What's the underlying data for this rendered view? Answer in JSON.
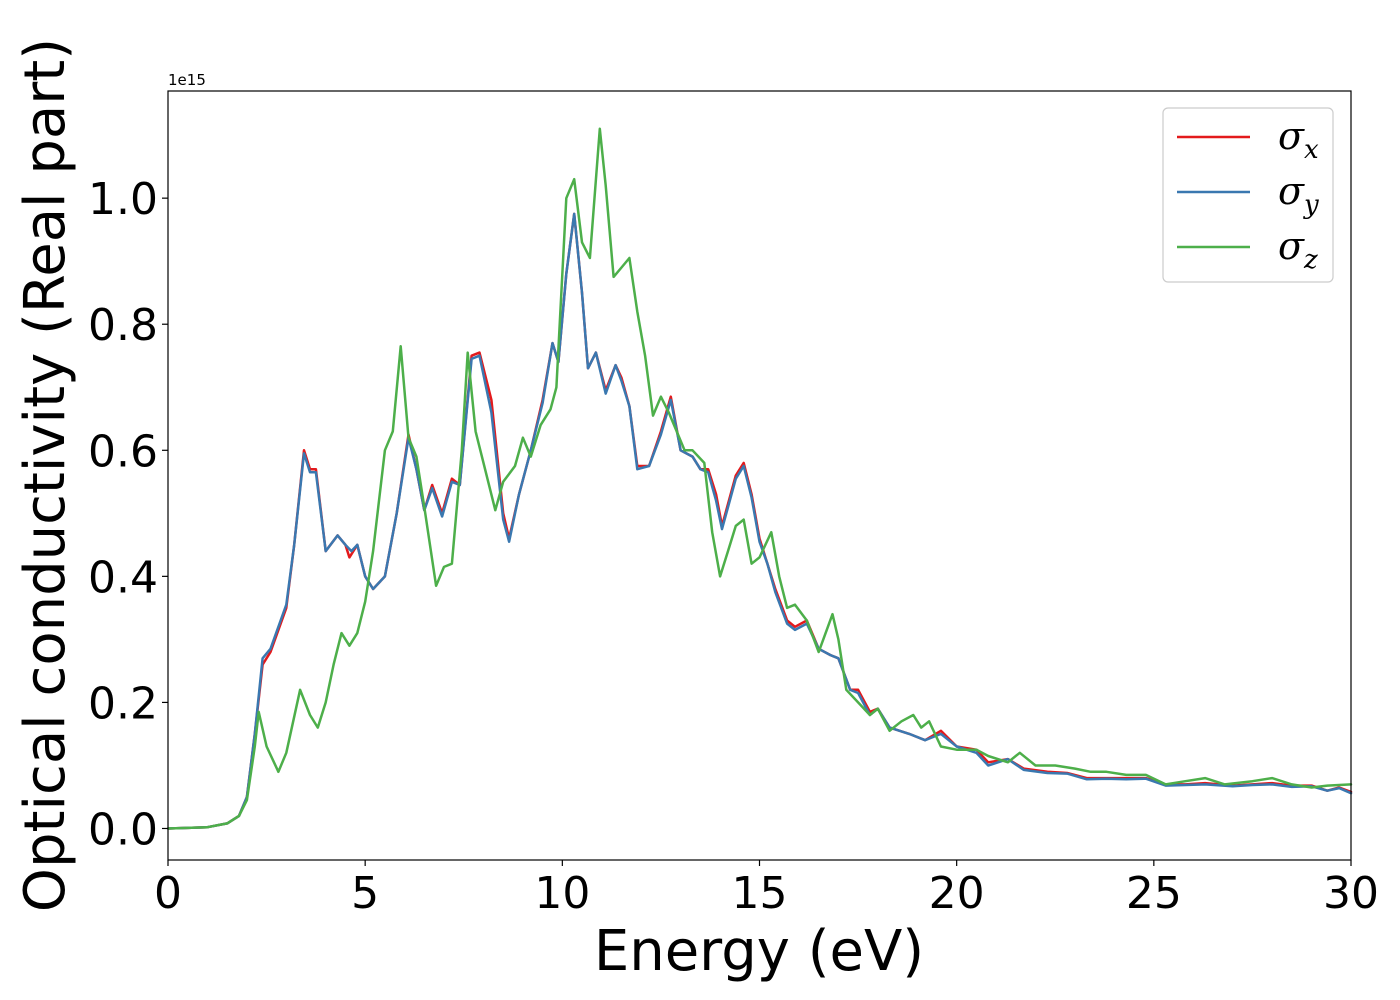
{
  "chart_data": {
    "type": "line",
    "xlabel": "Energy (eV)",
    "ylabel": "Optical conductivity (Real part)",
    "y_offset_label": "1e15",
    "xlim": [
      0,
      30
    ],
    "ylim": [
      -0.05,
      1.17
    ],
    "x_ticks": [
      0,
      5,
      10,
      15,
      20,
      25,
      30
    ],
    "y_ticks": [
      0.0,
      0.2,
      0.4,
      0.6,
      0.8,
      1.0
    ],
    "y_tick_labels": [
      "0.0",
      "0.2",
      "0.4",
      "0.6",
      "0.8",
      "1.0"
    ],
    "grid": false,
    "legend_position": "upper right",
    "series": [
      {
        "name": "σx",
        "symbol": "σ",
        "subscript": "x",
        "color": "#e31a1c",
        "points": [
          [
            0,
            0
          ],
          [
            1,
            0.002
          ],
          [
            1.5,
            0.008
          ],
          [
            1.8,
            0.02
          ],
          [
            2.0,
            0.05
          ],
          [
            2.2,
            0.15
          ],
          [
            2.4,
            0.26
          ],
          [
            2.6,
            0.28
          ],
          [
            3.0,
            0.35
          ],
          [
            3.2,
            0.45
          ],
          [
            3.45,
            0.6
          ],
          [
            3.6,
            0.57
          ],
          [
            3.75,
            0.57
          ],
          [
            4.0,
            0.44
          ],
          [
            4.3,
            0.465
          ],
          [
            4.5,
            0.45
          ],
          [
            4.6,
            0.43
          ],
          [
            4.8,
            0.45
          ],
          [
            5.0,
            0.4
          ],
          [
            5.2,
            0.38
          ],
          [
            5.5,
            0.4
          ],
          [
            5.8,
            0.5
          ],
          [
            6.1,
            0.625
          ],
          [
            6.3,
            0.57
          ],
          [
            6.5,
            0.505
          ],
          [
            6.7,
            0.545
          ],
          [
            6.95,
            0.5
          ],
          [
            7.2,
            0.555
          ],
          [
            7.4,
            0.545
          ],
          [
            7.7,
            0.75
          ],
          [
            7.9,
            0.755
          ],
          [
            8.2,
            0.68
          ],
          [
            8.5,
            0.5
          ],
          [
            8.65,
            0.46
          ],
          [
            8.9,
            0.53
          ],
          [
            9.2,
            0.6
          ],
          [
            9.5,
            0.68
          ],
          [
            9.75,
            0.77
          ],
          [
            9.9,
            0.74
          ],
          [
            10.1,
            0.88
          ],
          [
            10.3,
            0.975
          ],
          [
            10.5,
            0.85
          ],
          [
            10.65,
            0.73
          ],
          [
            10.85,
            0.755
          ],
          [
            11.1,
            0.695
          ],
          [
            11.35,
            0.735
          ],
          [
            11.5,
            0.715
          ],
          [
            11.7,
            0.67
          ],
          [
            11.9,
            0.575
          ],
          [
            12.2,
            0.575
          ],
          [
            12.5,
            0.63
          ],
          [
            12.75,
            0.685
          ],
          [
            13.0,
            0.6
          ],
          [
            13.3,
            0.59
          ],
          [
            13.5,
            0.57
          ],
          [
            13.7,
            0.57
          ],
          [
            13.9,
            0.53
          ],
          [
            14.05,
            0.48
          ],
          [
            14.4,
            0.56
          ],
          [
            14.6,
            0.58
          ],
          [
            14.8,
            0.53
          ],
          [
            15.0,
            0.46
          ],
          [
            15.2,
            0.42
          ],
          [
            15.4,
            0.38
          ],
          [
            15.7,
            0.33
          ],
          [
            15.9,
            0.32
          ],
          [
            16.2,
            0.33
          ],
          [
            16.5,
            0.285
          ],
          [
            16.8,
            0.275
          ],
          [
            17.0,
            0.27
          ],
          [
            17.3,
            0.22
          ],
          [
            17.5,
            0.22
          ],
          [
            17.8,
            0.185
          ],
          [
            18.0,
            0.19
          ],
          [
            18.3,
            0.16
          ],
          [
            18.8,
            0.15
          ],
          [
            19.2,
            0.14
          ],
          [
            19.6,
            0.155
          ],
          [
            20.0,
            0.13
          ],
          [
            20.5,
            0.125
          ],
          [
            20.8,
            0.105
          ],
          [
            21.3,
            0.11
          ],
          [
            21.7,
            0.095
          ],
          [
            22.3,
            0.09
          ],
          [
            22.8,
            0.088
          ],
          [
            23.3,
            0.08
          ],
          [
            23.8,
            0.08
          ],
          [
            24.3,
            0.08
          ],
          [
            24.8,
            0.08
          ],
          [
            25.3,
            0.07
          ],
          [
            25.8,
            0.07
          ],
          [
            26.3,
            0.072
          ],
          [
            27.0,
            0.068
          ],
          [
            27.5,
            0.07
          ],
          [
            28.0,
            0.072
          ],
          [
            28.5,
            0.068
          ],
          [
            29.0,
            0.068
          ],
          [
            29.4,
            0.06
          ],
          [
            29.7,
            0.065
          ],
          [
            30,
            0.058
          ]
        ]
      },
      {
        "name": "σy",
        "symbol": "σ",
        "subscript": "y",
        "color": "#3a78b0",
        "points": [
          [
            0,
            0
          ],
          [
            1,
            0.002
          ],
          [
            1.5,
            0.008
          ],
          [
            1.8,
            0.02
          ],
          [
            2.0,
            0.05
          ],
          [
            2.2,
            0.15
          ],
          [
            2.4,
            0.27
          ],
          [
            2.6,
            0.285
          ],
          [
            3.0,
            0.355
          ],
          [
            3.2,
            0.45
          ],
          [
            3.45,
            0.595
          ],
          [
            3.6,
            0.565
          ],
          [
            3.75,
            0.565
          ],
          [
            4.0,
            0.44
          ],
          [
            4.3,
            0.465
          ],
          [
            4.5,
            0.45
          ],
          [
            4.65,
            0.44
          ],
          [
            4.8,
            0.45
          ],
          [
            5.0,
            0.4
          ],
          [
            5.2,
            0.38
          ],
          [
            5.5,
            0.4
          ],
          [
            5.8,
            0.5
          ],
          [
            6.1,
            0.62
          ],
          [
            6.3,
            0.57
          ],
          [
            6.5,
            0.505
          ],
          [
            6.7,
            0.54
          ],
          [
            6.95,
            0.495
          ],
          [
            7.2,
            0.55
          ],
          [
            7.4,
            0.545
          ],
          [
            7.7,
            0.745
          ],
          [
            7.9,
            0.75
          ],
          [
            8.2,
            0.66
          ],
          [
            8.5,
            0.49
          ],
          [
            8.65,
            0.455
          ],
          [
            8.9,
            0.53
          ],
          [
            9.2,
            0.6
          ],
          [
            9.5,
            0.675
          ],
          [
            9.75,
            0.77
          ],
          [
            9.9,
            0.74
          ],
          [
            10.1,
            0.88
          ],
          [
            10.3,
            0.975
          ],
          [
            10.5,
            0.85
          ],
          [
            10.65,
            0.73
          ],
          [
            10.85,
            0.755
          ],
          [
            11.1,
            0.69
          ],
          [
            11.35,
            0.735
          ],
          [
            11.5,
            0.71
          ],
          [
            11.7,
            0.67
          ],
          [
            11.9,
            0.57
          ],
          [
            12.2,
            0.575
          ],
          [
            12.5,
            0.625
          ],
          [
            12.75,
            0.68
          ],
          [
            13.0,
            0.6
          ],
          [
            13.3,
            0.59
          ],
          [
            13.5,
            0.57
          ],
          [
            13.7,
            0.565
          ],
          [
            13.9,
            0.52
          ],
          [
            14.05,
            0.475
          ],
          [
            14.4,
            0.555
          ],
          [
            14.6,
            0.575
          ],
          [
            14.8,
            0.525
          ],
          [
            15.0,
            0.455
          ],
          [
            15.2,
            0.42
          ],
          [
            15.4,
            0.375
          ],
          [
            15.7,
            0.325
          ],
          [
            15.9,
            0.315
          ],
          [
            16.2,
            0.325
          ],
          [
            16.5,
            0.285
          ],
          [
            16.8,
            0.275
          ],
          [
            17.0,
            0.27
          ],
          [
            17.3,
            0.22
          ],
          [
            17.5,
            0.215
          ],
          [
            17.8,
            0.18
          ],
          [
            18.0,
            0.19
          ],
          [
            18.3,
            0.16
          ],
          [
            18.8,
            0.15
          ],
          [
            19.2,
            0.14
          ],
          [
            19.6,
            0.15
          ],
          [
            20.0,
            0.13
          ],
          [
            20.5,
            0.12
          ],
          [
            20.8,
            0.1
          ],
          [
            21.3,
            0.11
          ],
          [
            21.7,
            0.093
          ],
          [
            22.3,
            0.088
          ],
          [
            22.8,
            0.087
          ],
          [
            23.3,
            0.078
          ],
          [
            23.8,
            0.079
          ],
          [
            24.3,
            0.078
          ],
          [
            24.8,
            0.079
          ],
          [
            25.3,
            0.068
          ],
          [
            25.8,
            0.069
          ],
          [
            26.3,
            0.07
          ],
          [
            27.0,
            0.067
          ],
          [
            27.5,
            0.069
          ],
          [
            28.0,
            0.07
          ],
          [
            28.5,
            0.066
          ],
          [
            29.0,
            0.067
          ],
          [
            29.4,
            0.06
          ],
          [
            29.7,
            0.064
          ],
          [
            30,
            0.056
          ]
        ]
      },
      {
        "name": "σz",
        "symbol": "σ",
        "subscript": "z",
        "color": "#4daf4a",
        "points": [
          [
            0,
            0
          ],
          [
            1,
            0.002
          ],
          [
            1.5,
            0.008
          ],
          [
            1.8,
            0.02
          ],
          [
            2.0,
            0.045
          ],
          [
            2.2,
            0.13
          ],
          [
            2.3,
            0.185
          ],
          [
            2.5,
            0.13
          ],
          [
            2.8,
            0.09
          ],
          [
            3.0,
            0.12
          ],
          [
            3.35,
            0.22
          ],
          [
            3.6,
            0.18
          ],
          [
            3.8,
            0.16
          ],
          [
            4.0,
            0.2
          ],
          [
            4.2,
            0.26
          ],
          [
            4.4,
            0.31
          ],
          [
            4.6,
            0.29
          ],
          [
            4.8,
            0.31
          ],
          [
            5.0,
            0.36
          ],
          [
            5.2,
            0.44
          ],
          [
            5.5,
            0.6
          ],
          [
            5.7,
            0.63
          ],
          [
            5.9,
            0.765
          ],
          [
            6.1,
            0.62
          ],
          [
            6.3,
            0.59
          ],
          [
            6.5,
            0.51
          ],
          [
            6.8,
            0.385
          ],
          [
            7.0,
            0.415
          ],
          [
            7.2,
            0.42
          ],
          [
            7.45,
            0.6
          ],
          [
            7.6,
            0.755
          ],
          [
            7.8,
            0.63
          ],
          [
            8.0,
            0.58
          ],
          [
            8.3,
            0.505
          ],
          [
            8.5,
            0.55
          ],
          [
            8.8,
            0.575
          ],
          [
            9.0,
            0.62
          ],
          [
            9.2,
            0.59
          ],
          [
            9.45,
            0.64
          ],
          [
            9.7,
            0.665
          ],
          [
            9.85,
            0.7
          ],
          [
            10.1,
            1.0
          ],
          [
            10.3,
            1.03
          ],
          [
            10.5,
            0.93
          ],
          [
            10.7,
            0.905
          ],
          [
            10.95,
            1.11
          ],
          [
            11.1,
            1.02
          ],
          [
            11.3,
            0.875
          ],
          [
            11.5,
            0.89
          ],
          [
            11.7,
            0.905
          ],
          [
            11.9,
            0.82
          ],
          [
            12.1,
            0.75
          ],
          [
            12.3,
            0.655
          ],
          [
            12.5,
            0.685
          ],
          [
            12.7,
            0.66
          ],
          [
            12.9,
            0.63
          ],
          [
            13.1,
            0.6
          ],
          [
            13.3,
            0.6
          ],
          [
            13.6,
            0.58
          ],
          [
            13.8,
            0.47
          ],
          [
            14.0,
            0.4
          ],
          [
            14.2,
            0.44
          ],
          [
            14.4,
            0.48
          ],
          [
            14.6,
            0.49
          ],
          [
            14.8,
            0.42
          ],
          [
            15.0,
            0.43
          ],
          [
            15.3,
            0.47
          ],
          [
            15.5,
            0.4
          ],
          [
            15.7,
            0.35
          ],
          [
            15.9,
            0.355
          ],
          [
            16.2,
            0.33
          ],
          [
            16.5,
            0.28
          ],
          [
            16.85,
            0.34
          ],
          [
            17.0,
            0.3
          ],
          [
            17.2,
            0.22
          ],
          [
            17.5,
            0.2
          ],
          [
            17.8,
            0.18
          ],
          [
            18.0,
            0.19
          ],
          [
            18.3,
            0.155
          ],
          [
            18.6,
            0.17
          ],
          [
            18.9,
            0.18
          ],
          [
            19.1,
            0.16
          ],
          [
            19.3,
            0.17
          ],
          [
            19.6,
            0.13
          ],
          [
            20.0,
            0.125
          ],
          [
            20.5,
            0.125
          ],
          [
            20.8,
            0.115
          ],
          [
            21.3,
            0.105
          ],
          [
            21.6,
            0.12
          ],
          [
            22.0,
            0.1
          ],
          [
            22.5,
            0.1
          ],
          [
            23.0,
            0.095
          ],
          [
            23.4,
            0.09
          ],
          [
            23.8,
            0.09
          ],
          [
            24.3,
            0.085
          ],
          [
            24.8,
            0.085
          ],
          [
            25.3,
            0.07
          ],
          [
            25.8,
            0.075
          ],
          [
            26.3,
            0.08
          ],
          [
            26.8,
            0.07
          ],
          [
            27.5,
            0.075
          ],
          [
            28.0,
            0.08
          ],
          [
            28.5,
            0.07
          ],
          [
            29.0,
            0.065
          ],
          [
            29.4,
            0.068
          ],
          [
            30,
            0.07
          ]
        ]
      }
    ]
  }
}
